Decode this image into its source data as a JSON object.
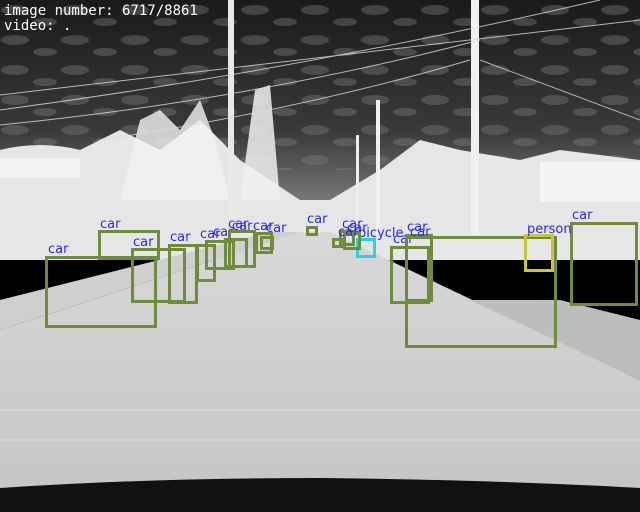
{
  "hud": {
    "line1": "image number: 6717/8861",
    "line2": "video: ."
  },
  "colors": {
    "car": "#6e8c3c",
    "person": "#c8c832",
    "bicycle": "#28d2e6",
    "label_text": "#2828ff",
    "hud_text": "#ffffff"
  },
  "detections": [
    {
      "label": "car"
    },
    {
      "label": "car"
    },
    {
      "label": "car"
    },
    {
      "label": "car"
    },
    {
      "label": "car"
    },
    {
      "label": "car"
    },
    {
      "label": "car"
    },
    {
      "label": "car"
    },
    {
      "label": "car"
    },
    {
      "label": "car"
    },
    {
      "label": "car"
    },
    {
      "label": "car"
    },
    {
      "label": "car"
    },
    {
      "label": "car"
    },
    {
      "label": "bicycle"
    },
    {
      "label": "car"
    },
    {
      "label": "car"
    },
    {
      "label": "car"
    },
    {
      "label": "person"
    },
    {
      "label": "car"
    }
  ]
}
